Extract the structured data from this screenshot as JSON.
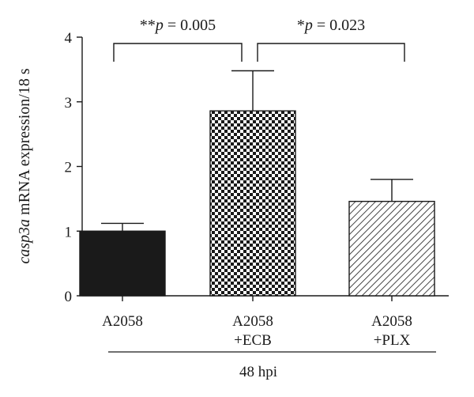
{
  "chart_data": {
    "type": "bar",
    "categories": [
      [
        "A2058"
      ],
      [
        "A2058",
        "+ECB"
      ],
      [
        "A2058",
        "+PLX"
      ]
    ],
    "values": [
      1.0,
      2.86,
      1.46
    ],
    "errors": [
      0.12,
      0.62,
      0.34
    ],
    "patterns": [
      "solid",
      "checker",
      "diagonal"
    ],
    "ylabel_italic": "casp3a",
    "ylabel_rest": " mRNA expression/18 s",
    "ylim": [
      0,
      4
    ],
    "yticks": [
      0,
      1,
      2,
      3,
      4
    ],
    "group_label": "48 hpi",
    "comparisons": [
      {
        "from": 0,
        "to": 1,
        "stars": "**",
        "p_symbol": "p",
        "p_rest": " = 0.005"
      },
      {
        "from": 1,
        "to": 2,
        "stars": "*",
        "p_symbol": "p",
        "p_rest": " = 0.023"
      }
    ],
    "grid": false,
    "colors": {
      "bar_fill": "#1a1a1a",
      "axis": "#1a1a1a",
      "background": "#ffffff"
    }
  }
}
